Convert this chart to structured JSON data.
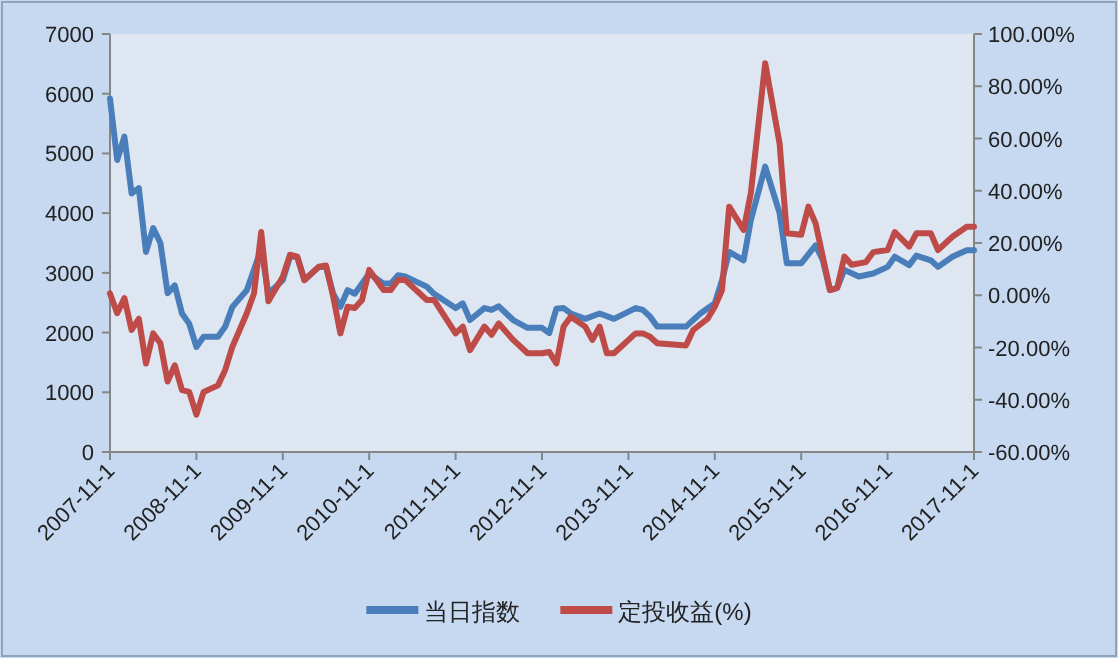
{
  "chart_data": {
    "type": "line",
    "xlim": [
      "2007-11",
      "2017-11"
    ],
    "xticks": [
      {
        "value": "2007-11",
        "label": "2007-11-1"
      },
      {
        "value": "2008-11",
        "label": "2008-11-1"
      },
      {
        "value": "2009-11",
        "label": "2009-11-1"
      },
      {
        "value": "2010-11",
        "label": "2010-11-1"
      },
      {
        "value": "2011-11",
        "label": "2011-11-1"
      },
      {
        "value": "2012-11",
        "label": "2012-11-1"
      },
      {
        "value": "2013-11",
        "label": "2013-11-1"
      },
      {
        "value": "2014-11",
        "label": "2014-11-1"
      },
      {
        "value": "2015-11",
        "label": "2015-11-1"
      },
      {
        "value": "2016-11",
        "label": "2016-11-1"
      },
      {
        "value": "2017-11",
        "label": "2017-11-1"
      }
    ],
    "ylim": [
      0,
      7000
    ],
    "yticks": [
      0,
      1000,
      2000,
      3000,
      4000,
      5000,
      6000,
      7000
    ],
    "y2lim": [
      -60,
      100
    ],
    "y2ticks": [
      {
        "value": -60,
        "label": "-60.00%"
      },
      {
        "value": -40,
        "label": "-40.00%"
      },
      {
        "value": -20,
        "label": "-20.00%"
      },
      {
        "value": 0,
        "label": "0.00%"
      },
      {
        "value": 20,
        "label": "20.00%"
      },
      {
        "value": 40,
        "label": "40.00%"
      },
      {
        "value": 60,
        "label": "60.00%"
      },
      {
        "value": 80,
        "label": "80.00%"
      },
      {
        "value": 100,
        "label": "100.00%"
      }
    ],
    "grid": false,
    "legend": "bottom",
    "marker": "none",
    "line_style": "solid",
    "series": [
      {
        "name": "当日指数",
        "color": "#4a7ebb",
        "x": [
          "2007-11",
          "2007-12",
          "2008-01",
          "2008-02",
          "2008-03",
          "2008-04",
          "2008-05",
          "2008-06",
          "2008-07",
          "2008-08",
          "2008-09",
          "2008-10",
          "2008-11",
          "2008-12",
          "2009-02",
          "2009-03",
          "2009-04",
          "2009-06",
          "2009-08",
          "2009-09",
          "2009-11",
          "2009-12",
          "2010-01",
          "2010-02",
          "2010-04",
          "2010-05",
          "2010-06",
          "2010-07",
          "2010-08",
          "2010-09",
          "2010-11",
          "2011-01",
          "2011-02",
          "2011-03",
          "2011-04",
          "2011-07",
          "2011-08",
          "2011-11",
          "2011-12",
          "2012-01",
          "2012-03",
          "2012-04",
          "2012-05",
          "2012-07",
          "2012-09",
          "2012-11",
          "2012-12",
          "2013-01",
          "2013-02",
          "2013-03",
          "2013-05",
          "2013-07",
          "2013-09",
          "2013-12",
          "2014-01",
          "2014-02",
          "2014-03",
          "2014-05",
          "2014-07",
          "2014-08",
          "2014-09",
          "2014-11",
          "2014-12",
          "2015-01",
          "2015-03",
          "2015-04",
          "2015-06",
          "2015-08",
          "2015-09",
          "2015-11",
          "2016-01",
          "2016-02",
          "2016-03",
          "2016-04",
          "2016-05",
          "2016-07",
          "2016-09",
          "2016-11",
          "2016-12",
          "2017-02",
          "2017-03",
          "2017-05",
          "2017-06",
          "2017-08",
          "2017-10",
          "2017-11"
        ],
        "values": [
          5920,
          4890,
          5280,
          4330,
          4420,
          3350,
          3750,
          3500,
          2660,
          2790,
          2320,
          2150,
          1760,
          1930,
          1930,
          2100,
          2430,
          2710,
          3400,
          2650,
          2880,
          3270,
          3270,
          2880,
          3100,
          3100,
          2650,
          2430,
          2710,
          2650,
          2990,
          2820,
          2820,
          2960,
          2940,
          2770,
          2650,
          2410,
          2490,
          2210,
          2410,
          2380,
          2440,
          2210,
          2080,
          2080,
          1990,
          2400,
          2410,
          2320,
          2230,
          2320,
          2230,
          2410,
          2380,
          2270,
          2100,
          2100,
          2100,
          2210,
          2320,
          2490,
          2880,
          3350,
          3210,
          3880,
          4780,
          4000,
          3160,
          3160,
          3460,
          3210,
          2710,
          2750,
          3050,
          2940,
          2990,
          3100,
          3270,
          3130,
          3290,
          3210,
          3100,
          3270,
          3380,
          3380
        ]
      },
      {
        "name": "定投收益(%)",
        "color": "#be4b48",
        "axis": "y2",
        "x": [
          "2007-11",
          "2007-12",
          "2008-01",
          "2008-02",
          "2008-03",
          "2008-04",
          "2008-05",
          "2008-06",
          "2008-07",
          "2008-08",
          "2008-09",
          "2008-10",
          "2008-11",
          "2008-12",
          "2009-02",
          "2009-03",
          "2009-04",
          "2009-06",
          "2009-07",
          "2009-08",
          "2009-09",
          "2009-11",
          "2009-12",
          "2010-01",
          "2010-02",
          "2010-04",
          "2010-05",
          "2010-06",
          "2010-07",
          "2010-08",
          "2010-09",
          "2010-10",
          "2010-11",
          "2011-01",
          "2011-02",
          "2011-03",
          "2011-04",
          "2011-07",
          "2011-08",
          "2011-11",
          "2011-12",
          "2012-01",
          "2012-03",
          "2012-04",
          "2012-05",
          "2012-07",
          "2012-09",
          "2012-11",
          "2012-12",
          "2013-01",
          "2013-02",
          "2013-03",
          "2013-05",
          "2013-06",
          "2013-07",
          "2013-08",
          "2013-09",
          "2013-12",
          "2014-01",
          "2014-02",
          "2014-03",
          "2014-07",
          "2014-08",
          "2014-10",
          "2014-11",
          "2014-12",
          "2015-01",
          "2015-03",
          "2015-04",
          "2015-06",
          "2015-08",
          "2015-09",
          "2015-11",
          "2015-12",
          "2016-01",
          "2016-03",
          "2016-04",
          "2016-05",
          "2016-06",
          "2016-08",
          "2016-09",
          "2016-11",
          "2016-12",
          "2017-02",
          "2017-03",
          "2017-05",
          "2017-06",
          "2017-08",
          "2017-10",
          "2017-11"
        ],
        "values": [
          0.7,
          -6.9,
          -1.1,
          -13.3,
          -9.0,
          -26.1,
          -14.6,
          -18.4,
          -33.0,
          -26.8,
          -36.3,
          -37.0,
          -45.7,
          -37.0,
          -34.5,
          -28.6,
          -19.7,
          -6.9,
          0.7,
          24.2,
          -2.3,
          7.1,
          15.5,
          14.8,
          5.8,
          10.9,
          11.4,
          -0.5,
          -14.6,
          -4.4,
          -4.9,
          -1.8,
          9.7,
          2.0,
          2.0,
          5.8,
          5.8,
          -1.8,
          -1.8,
          -14.6,
          -12.0,
          -21.0,
          -12.0,
          -15.1,
          -10.8,
          -17.1,
          -22.2,
          -22.2,
          -21.7,
          -26.1,
          -12.0,
          -8.2,
          -12.0,
          -17.1,
          -12.0,
          -22.2,
          -22.2,
          -14.6,
          -14.6,
          -15.9,
          -18.4,
          -19.2,
          -13.3,
          -9.0,
          -4.4,
          2.0,
          33.9,
          25.0,
          39.0,
          88.8,
          58.1,
          23.7,
          23.2,
          33.9,
          27.5,
          2.0,
          2.8,
          14.8,
          11.7,
          12.7,
          16.5,
          17.3,
          24.2,
          18.6,
          23.7,
          23.7,
          17.3,
          22.4,
          26.2,
          26.2
        ]
      }
    ]
  }
}
